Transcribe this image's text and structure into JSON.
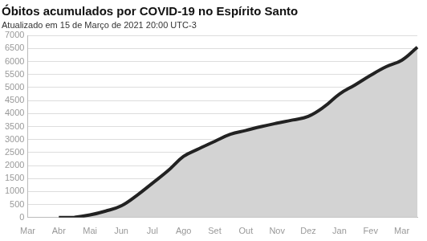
{
  "chart_data": {
    "type": "area",
    "title": "Óbitos acumulados por COVID-19 no Espírito Santo",
    "subtitle": "Atualizado em 15 de Março de 2021 20:00 UTC-3",
    "categories": [
      "Mar",
      null,
      "Abr",
      null,
      "Mai",
      null,
      "Jun",
      null,
      "Jul",
      null,
      "Ago",
      null,
      "Set",
      null,
      "Out",
      null,
      "Nov",
      null,
      "Dez",
      null,
      "Jan",
      null,
      "Fev",
      null,
      "Mar",
      null
    ],
    "values": [
      null,
      null,
      0,
      10,
      100,
      250,
      450,
      850,
      1320,
      1800,
      2350,
      2650,
      2930,
      3200,
      3350,
      3500,
      3630,
      3750,
      3890,
      4250,
      4750,
      5100,
      5470,
      5800,
      6050,
      6550
    ],
    "color": "#222222",
    "ylim": [
      0,
      7000
    ],
    "yticks": [
      0,
      500,
      1000,
      1500,
      2000,
      2500,
      3000,
      3500,
      4000,
      4500,
      5000,
      5500,
      6000,
      6500,
      7000
    ],
    "grid": true
  }
}
